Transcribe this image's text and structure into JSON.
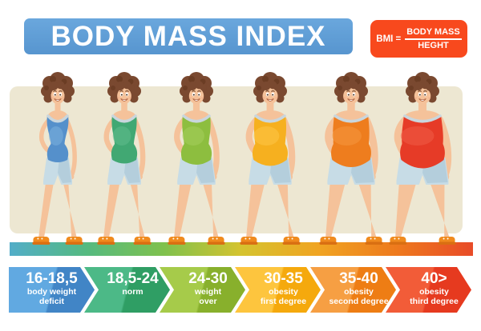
{
  "header": {
    "title": "BODY MASS INDEX",
    "bg_top": "#6AA7DD",
    "bg_bottom": "#5795CF"
  },
  "formula": {
    "lhs": "BMI =",
    "numerator": "BODY MASS",
    "denominator": "HEGHT",
    "bg": "#F8491D"
  },
  "palette": {
    "panel": "#EDE7D2",
    "floor_gradient": [
      "#52ADC8",
      "#55BA80",
      "#7FC14D",
      "#D5C32F",
      "#F0A422",
      "#EE7A1D",
      "#E84B28"
    ],
    "skin": "#F5C29A",
    "skin_shadow": "#E9AF83",
    "hair": "#7A4930",
    "hair_dark": "#5C3118",
    "shorts": "#C7DCE6",
    "shorts_shadow": "#AFCBDA",
    "collar": "#C9D6DD",
    "shoe": "#F08A1D",
    "shoe_dark": "#D96F12",
    "mouth": "#B0603C"
  },
  "figures": [
    {
      "label": "woman-deficit",
      "top_color": "#5590CB",
      "top_light": "#7FB3DF"
    },
    {
      "label": "woman-norm",
      "top_color": "#41A873",
      "top_light": "#63BE8F"
    },
    {
      "label": "woman-overweight",
      "top_color": "#8DBE3F",
      "top_light": "#A8CF5F"
    },
    {
      "label": "woman-obesity-1",
      "top_color": "#F6B01F",
      "top_light": "#FDC84B"
    },
    {
      "label": "woman-obesity-2",
      "top_color": "#EE7D1E",
      "top_light": "#F59A42"
    },
    {
      "label": "woman-obesity-3",
      "top_color": "#E63B27",
      "top_light": "#F0604A"
    }
  ],
  "categories": [
    {
      "range": "16-18,5",
      "lines": [
        "body weight",
        "deficit"
      ],
      "color_light": "#61A9E1",
      "color_dark": "#4185C6"
    },
    {
      "range": "18,5-24",
      "lines": [
        "norm"
      ],
      "color_light": "#4CB987",
      "color_dark": "#2F9E64"
    },
    {
      "range": "24-30",
      "lines": [
        "weight",
        "over"
      ],
      "color_light": "#A6CB4A",
      "color_dark": "#88B02C"
    },
    {
      "range": "30-35",
      "lines": [
        "obesity",
        "first degree"
      ],
      "color_light": "#FDC53E",
      "color_dark": "#F5A90D"
    },
    {
      "range": "35-40",
      "lines": [
        "obesity",
        "second degree"
      ],
      "color_light": "#F69F43",
      "color_dark": "#EE7D14"
    },
    {
      "range": "40>",
      "lines": [
        "obesity",
        "third degree"
      ],
      "color_light": "#F25C38",
      "color_dark": "#E63A1F"
    }
  ]
}
